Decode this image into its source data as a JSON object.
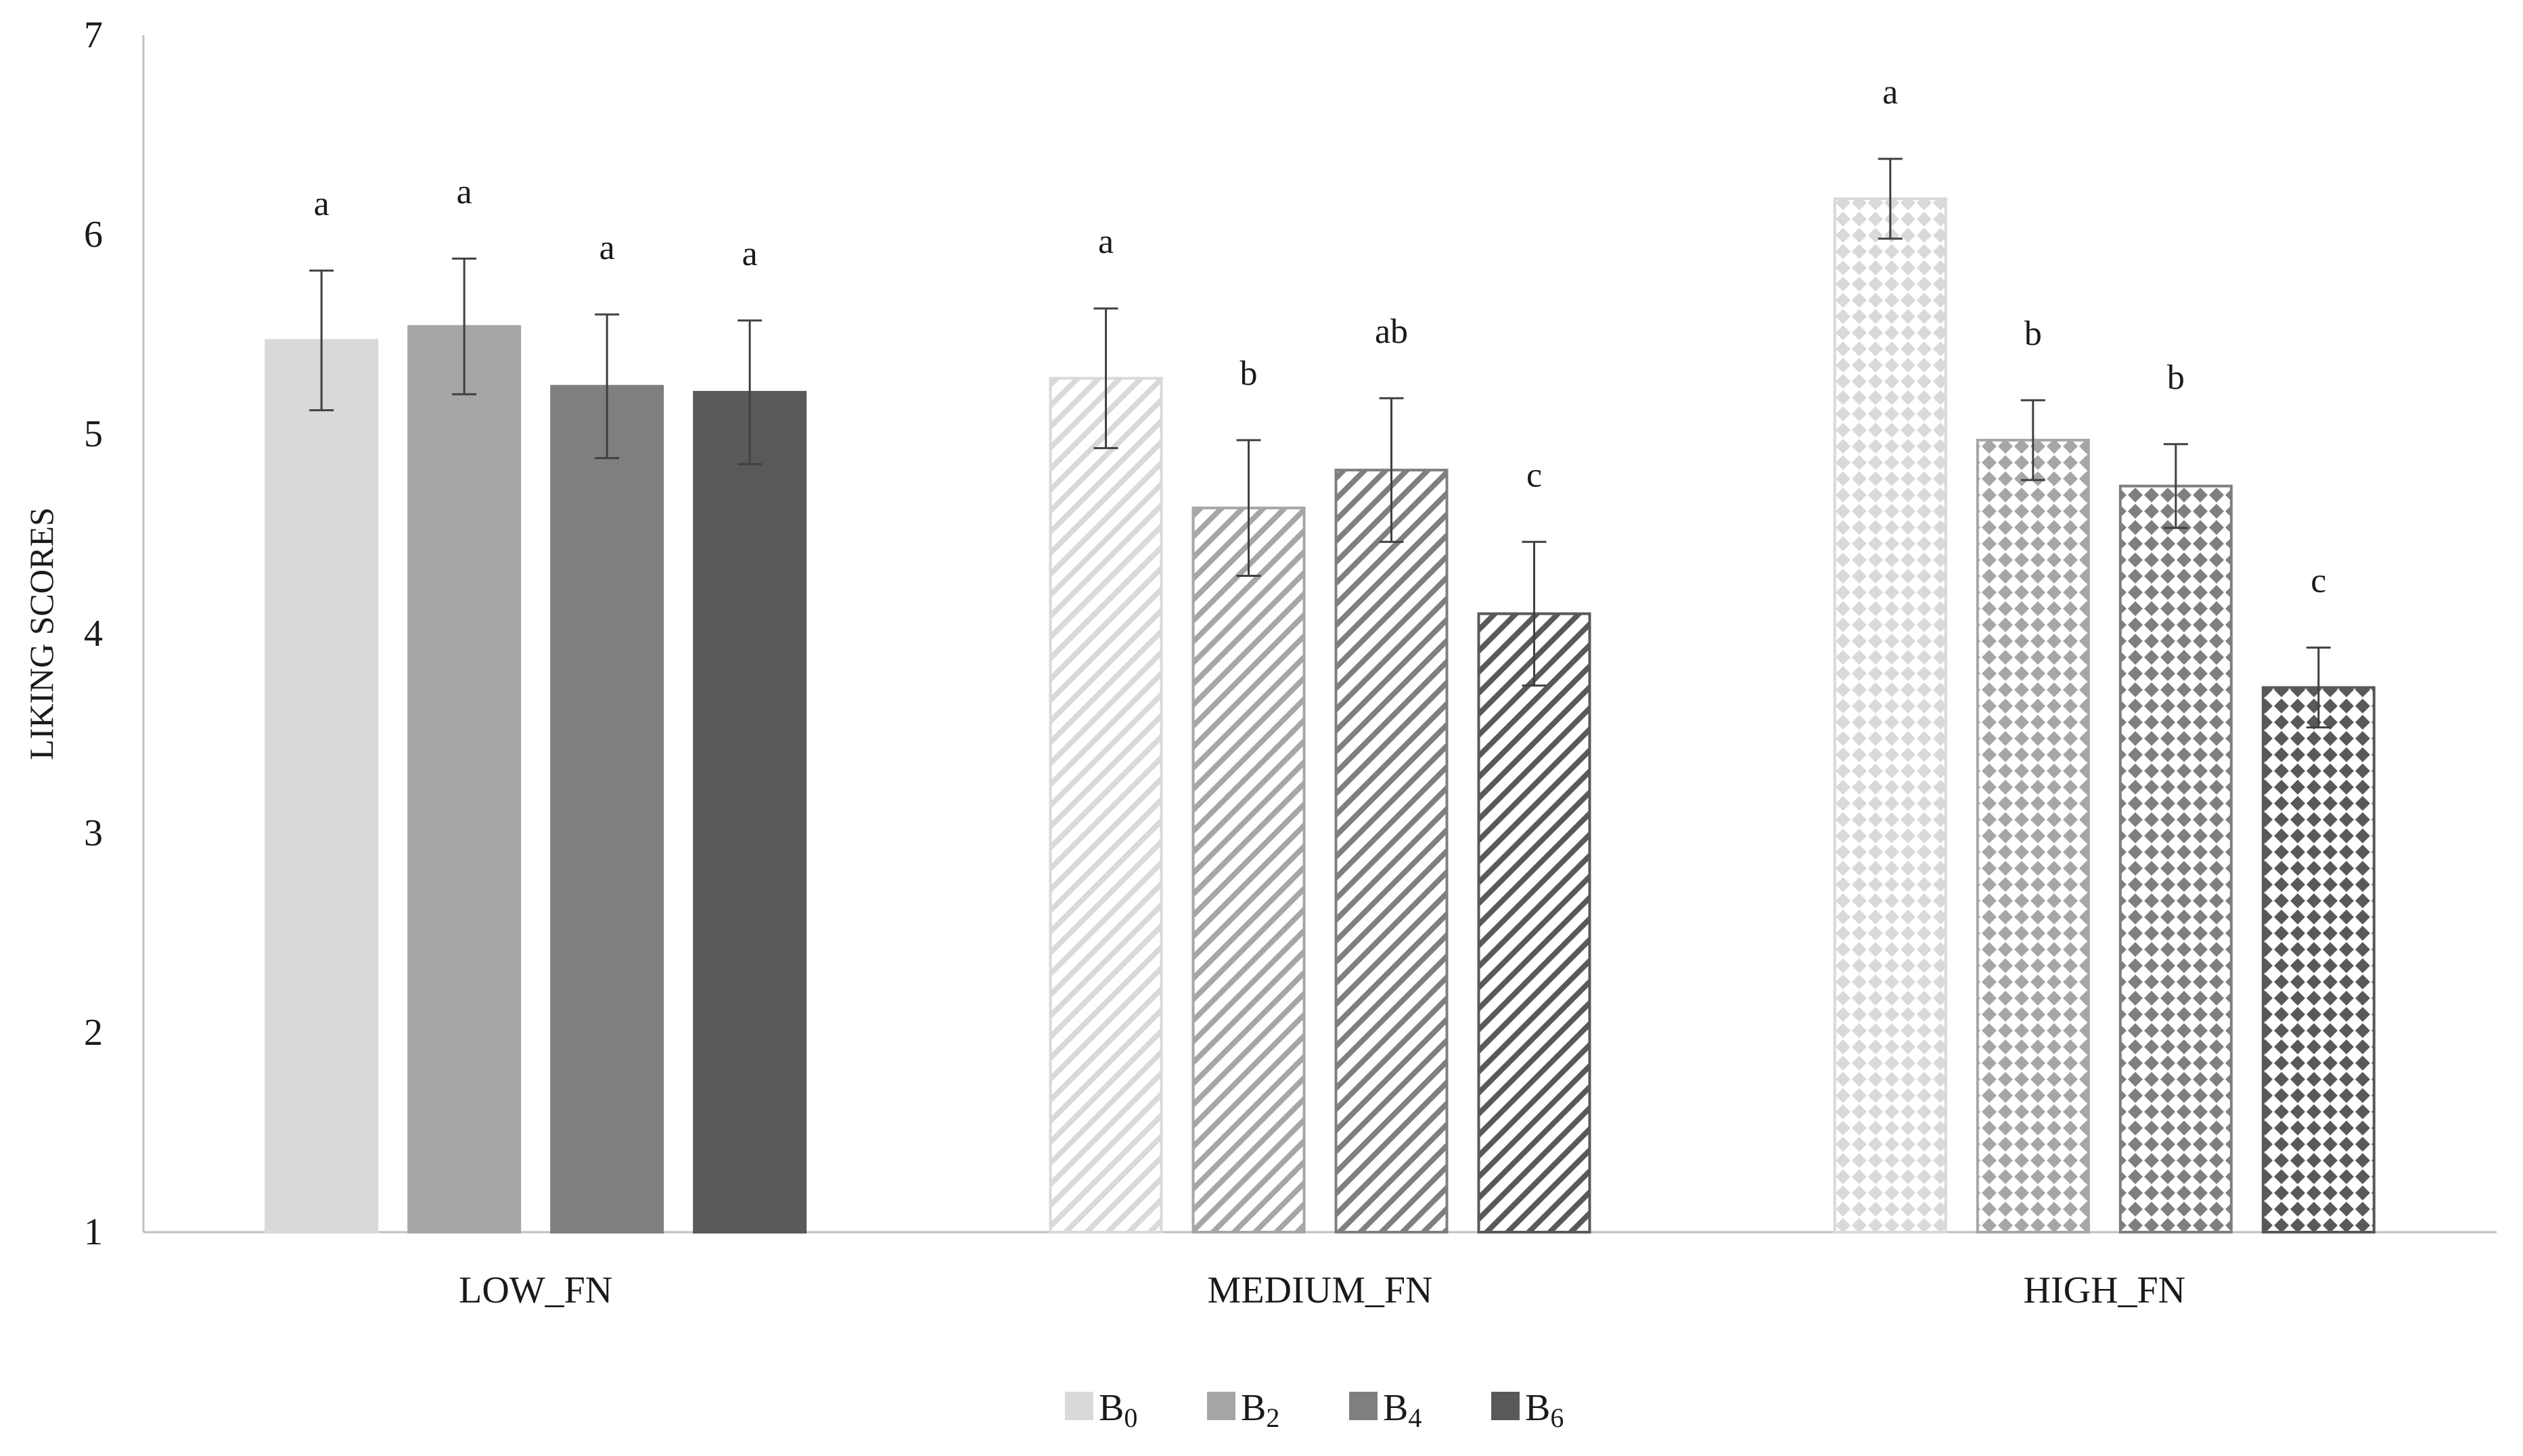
{
  "chart_data": {
    "type": "bar",
    "title": "",
    "xlabel": "",
    "ylabel": "LIKING SCORES",
    "ylim": [
      1,
      7
    ],
    "yticks": [
      "1",
      "2",
      "3",
      "4",
      "5",
      "6",
      "7"
    ],
    "categories": [
      "LOW_FN",
      "MEDIUM_FN",
      "HIGH_FN"
    ],
    "grid": false,
    "legend_position": "bottom-center",
    "series": [
      {
        "name": "B0",
        "legend_main": "B",
        "legend_sub": "0",
        "color": "#d9d9d9",
        "values": [
          5.47,
          5.28,
          6.18
        ],
        "errors": [
          0.35,
          0.35,
          0.2
        ],
        "letters": [
          "a",
          "a",
          "a"
        ]
      },
      {
        "name": "B2",
        "legend_main": "B",
        "legend_sub": "2",
        "color": "#a6a6a6",
        "values": [
          5.54,
          4.63,
          4.97
        ],
        "errors": [
          0.34,
          0.34,
          0.2
        ],
        "letters": [
          "a",
          "b",
          "b"
        ]
      },
      {
        "name": "B4",
        "legend_main": "B",
        "legend_sub": "4",
        "color": "#7f7f7f",
        "values": [
          5.24,
          4.82,
          4.74
        ],
        "errors": [
          0.36,
          0.36,
          0.21
        ],
        "letters": [
          "a",
          "ab",
          "b"
        ]
      },
      {
        "name": "B6",
        "legend_main": "B",
        "legend_sub": "6",
        "color": "#595959",
        "values": [
          5.21,
          4.1,
          3.73
        ],
        "errors": [
          0.36,
          0.36,
          0.2
        ],
        "letters": [
          "a",
          "c",
          "c"
        ]
      }
    ]
  }
}
